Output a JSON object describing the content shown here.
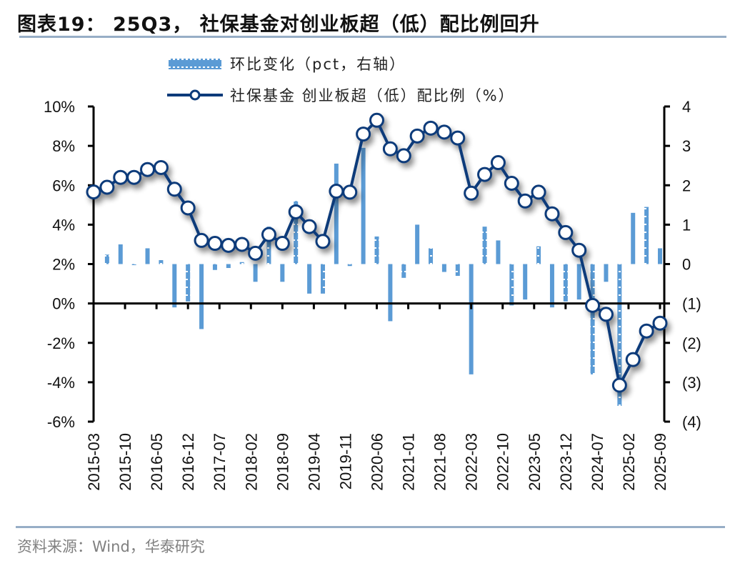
{
  "header": {
    "title": "图表19： 25Q3， 社保基金对创业板超（低）配比例回升"
  },
  "footer": {
    "source": "资料来源：Wind，华泰研究"
  },
  "colors": {
    "line": "#0b3a7a",
    "bar": "#5b9bd5",
    "axis": "#000000",
    "rule": "#97aec6"
  },
  "chart_data": {
    "type": "bar+line",
    "title": "25Q3，社保基金对创业板超（低）配比例回升",
    "legend": {
      "position": "top-center",
      "entries": [
        {
          "name": "环比变化（pct，右轴）",
          "type": "bar",
          "icon": "dotted-bar-swatch"
        },
        {
          "name": "社保基金 创业板超（低）配比例（%）",
          "type": "line",
          "icon": "line-marker-swatch"
        }
      ]
    },
    "x_tick_labels": [
      "2015-03",
      "2015-10",
      "2016-05",
      "2016-12",
      "2017-07",
      "2018-02",
      "2018-09",
      "2019-04",
      "2019-11",
      "2020-06",
      "2021-01",
      "2021-08",
      "2022-03",
      "2022-10",
      "2023-05",
      "2023-12",
      "2024-07",
      "2025-02",
      "2025-09"
    ],
    "x": [
      "2015-03",
      "2015-06",
      "2015-09",
      "2015-12",
      "2016-03",
      "2016-06",
      "2016-09",
      "2016-12",
      "2017-03",
      "2017-06",
      "2017-09",
      "2017-12",
      "2018-03",
      "2018-06",
      "2018-09",
      "2018-12",
      "2019-03",
      "2019-06",
      "2019-09",
      "2019-12",
      "2020-03",
      "2020-06",
      "2020-09",
      "2020-12",
      "2021-03",
      "2021-06",
      "2021-09",
      "2021-12",
      "2022-03",
      "2022-06",
      "2022-09",
      "2022-12",
      "2023-03",
      "2023-06",
      "2023-09",
      "2023-12",
      "2024-03",
      "2024-06",
      "2024-09",
      "2024-12",
      "2025-03",
      "2025-06",
      "2025-09"
    ],
    "left_axis": {
      "label": "超（低）配比例（%）",
      "range": [
        -6,
        10
      ],
      "ticks": [
        10,
        8,
        6,
        4,
        2,
        0,
        -2,
        -4,
        -6
      ],
      "tick_labels": [
        "10%",
        "8%",
        "6%",
        "4%",
        "2%",
        "0%",
        "-2%",
        "-4%",
        "-6%"
      ]
    },
    "right_axis": {
      "label": "环比变化（pct）",
      "range": [
        -4,
        4
      ],
      "ticks": [
        4,
        3,
        2,
        1,
        0,
        -1,
        -2,
        -3,
        -4
      ],
      "tick_labels": [
        "4",
        "3",
        "2",
        "1",
        "0",
        "(1)",
        "(2)",
        "(3)",
        "(4)"
      ]
    },
    "series": [
      {
        "name": "社保基金 创业板超（低）配比例（%）",
        "type": "line",
        "axis": "left",
        "values": [
          5.66,
          5.9,
          6.4,
          6.4,
          6.8,
          6.9,
          5.8,
          4.85,
          3.2,
          3.05,
          2.95,
          3.0,
          2.55,
          3.5,
          3.05,
          4.65,
          3.9,
          3.15,
          5.7,
          5.65,
          8.6,
          9.3,
          7.85,
          7.5,
          8.5,
          8.9,
          8.7,
          8.4,
          5.6,
          6.55,
          7.15,
          6.1,
          5.2,
          5.65,
          4.55,
          3.6,
          2.7,
          -0.1,
          -0.55,
          -4.15,
          -2.85,
          -1.4,
          -1.0
        ]
      },
      {
        "name": "环比变化（pct，右轴）",
        "type": "bar",
        "axis": "right",
        "values": [
          null,
          0.24,
          0.5,
          0.0,
          0.4,
          0.1,
          -1.1,
          -0.95,
          -1.65,
          -0.15,
          -0.1,
          0.05,
          -0.45,
          0.95,
          -0.45,
          1.6,
          -0.75,
          -0.75,
          2.55,
          -0.05,
          2.95,
          0.7,
          -1.45,
          -0.35,
          1.0,
          0.4,
          -0.2,
          -0.3,
          -2.8,
          0.95,
          0.6,
          -1.05,
          -0.9,
          0.45,
          -1.1,
          -0.95,
          -0.9,
          -2.8,
          -0.45,
          -3.6,
          1.3,
          1.45,
          0.4
        ]
      }
    ],
    "grid": false
  }
}
